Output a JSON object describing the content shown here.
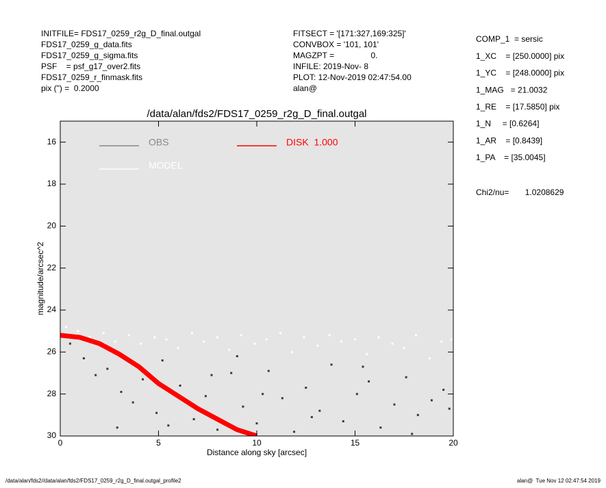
{
  "header_left": [
    "INITFILE= FDS17_0259_r2g_D_final.outgal",
    "FDS17_0259_g_data.fits",
    "FDS17_0259_g_sigma.fits",
    "PSF    = psf_g17_over2.fits",
    "FDS17_0259_r_finmask.fits",
    "pix (\") =  0.2000"
  ],
  "header_middle": [
    "FITSECT = '[171:327,169:325]'",
    "CONVBOX = '101, 101'",
    "MAGZPT =                0.",
    "INFILE: 2019-Nov- 8",
    "PLOT: 12-Nov-2019 02:47:54.00",
    "alan@"
  ],
  "header_right": [
    "COMP_1  = sersic",
    "1_XC    = [250.0000] pix",
    "1_YC    = [248.0000] pix",
    "1_MAG   = 21.0032",
    "1_RE    = [17.5850] pix",
    "1_N     = [0.6264]",
    "1_AR    = [0.8439]",
    "1_PA    = [35.0045]"
  ],
  "chi2": "Chi2/nu=       1.0208629",
  "footer_left": "/data/alan/fds2//data/alan/fds2/FDS17_0259_r2g_D_final.outgal_profile2",
  "footer_right": "alan@  Tue Nov 12 02:47:54 2019",
  "chart_data": {
    "type": "scatter",
    "title": "/data/alan/fds2/FDS17_0259_r2g_D_final.outgal",
    "xlabel": "Distance along sky [arcsec]",
    "ylabel": "magnitude/arcsec^2",
    "xlim": [
      0,
      20
    ],
    "xticks": [
      0,
      5,
      10,
      15,
      20
    ],
    "ylim": [
      15,
      30
    ],
    "yticks": [
      16,
      18,
      20,
      22,
      24,
      26,
      28,
      30
    ],
    "y_inverted": true,
    "series": [
      {
        "name": "OBS",
        "color": "#888888",
        "point_color": "#3a3a3a",
        "kind": "points",
        "x": [
          0.5,
          1.2,
          1.8,
          2.4,
          3.1,
          3.7,
          4.2,
          4.9,
          5.5,
          6.1,
          6.8,
          7.4,
          8.0,
          8.7,
          9.3,
          10.0,
          10.6,
          11.3,
          11.9,
          12.5,
          13.2,
          13.8,
          14.4,
          15.1,
          15.7,
          16.3,
          17.0,
          17.6,
          18.2,
          18.9,
          19.5,
          2.9,
          5.2,
          7.7,
          10.3,
          12.8,
          15.4,
          17.9,
          19.8,
          9.0
        ],
        "values": [
          25.6,
          26.3,
          27.1,
          26.8,
          27.9,
          28.4,
          27.3,
          28.9,
          29.5,
          27.6,
          29.2,
          28.1,
          29.7,
          27.0,
          28.6,
          29.4,
          26.9,
          28.2,
          29.8,
          27.7,
          28.8,
          26.6,
          29.3,
          28.0,
          27.4,
          29.6,
          28.5,
          27.2,
          29.0,
          28.3,
          27.8,
          29.6,
          26.4,
          27.1,
          28.0,
          29.1,
          26.7,
          29.9,
          28.7,
          26.2
        ]
      },
      {
        "name": "MODEL",
        "color": "#ffffff",
        "point_color": "#ffffff",
        "kind": "points",
        "x": [
          0.3,
          0.9,
          1.5,
          2.2,
          2.8,
          3.5,
          4.1,
          4.8,
          5.4,
          6.0,
          6.7,
          7.3,
          8.0,
          8.6,
          9.2,
          9.9,
          10.5,
          11.2,
          11.8,
          12.4,
          13.1,
          13.7,
          14.3,
          15.0,
          15.6,
          16.2,
          16.9,
          17.5,
          18.1,
          18.8,
          19.4,
          19.9
        ],
        "values": [
          24.8,
          25.0,
          25.3,
          25.1,
          25.5,
          25.2,
          25.6,
          25.3,
          25.4,
          25.8,
          25.1,
          25.5,
          25.3,
          25.9,
          25.2,
          25.6,
          25.4,
          25.1,
          26.0,
          25.3,
          25.7,
          25.2,
          25.5,
          25.4,
          26.1,
          25.3,
          25.6,
          25.8,
          25.2,
          26.3,
          25.5,
          25.4
        ]
      },
      {
        "name": "DISK  1.000",
        "color": "#ff0000",
        "kind": "line",
        "x": [
          0,
          1,
          2,
          3,
          4,
          5,
          6,
          7,
          8,
          9,
          10
        ],
        "values": [
          25.2,
          25.3,
          25.6,
          26.1,
          26.7,
          27.5,
          28.1,
          28.7,
          29.2,
          29.7,
          30.0
        ]
      }
    ]
  }
}
